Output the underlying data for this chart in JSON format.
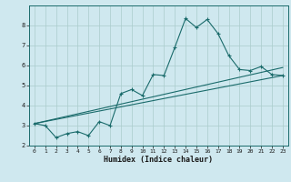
{
  "xlabel": "Humidex (Indice chaleur)",
  "background_color": "#cfe8ef",
  "grid_color": "#aacccc",
  "line_color": "#1a6b6b",
  "xlim": [
    -0.5,
    23.5
  ],
  "ylim": [
    2.0,
    9.0
  ],
  "yticks": [
    2,
    3,
    4,
    5,
    6,
    7,
    8
  ],
  "xticks": [
    0,
    1,
    2,
    3,
    4,
    5,
    6,
    7,
    8,
    9,
    10,
    11,
    12,
    13,
    14,
    15,
    16,
    17,
    18,
    19,
    20,
    21,
    22,
    23
  ],
  "series1_x": [
    0,
    1,
    2,
    3,
    4,
    5,
    6,
    7,
    8,
    9,
    10,
    11,
    12,
    13,
    14,
    15,
    16,
    17,
    18,
    19,
    20,
    21,
    22,
    23
  ],
  "series1_y": [
    3.1,
    3.0,
    2.4,
    2.6,
    2.7,
    2.5,
    3.2,
    3.0,
    4.6,
    4.8,
    4.5,
    5.55,
    5.5,
    6.9,
    8.35,
    7.9,
    8.3,
    7.6,
    6.5,
    5.8,
    5.75,
    5.95,
    5.55,
    5.5
  ],
  "series2_x": [
    0,
    23
  ],
  "series2_y": [
    3.1,
    5.5
  ],
  "series3_x": [
    0,
    23
  ],
  "series3_y": [
    3.1,
    5.9
  ]
}
